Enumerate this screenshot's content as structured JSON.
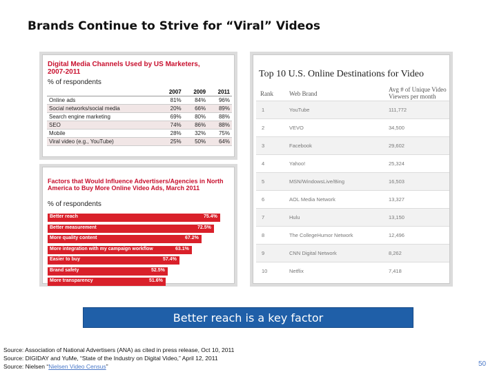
{
  "slide": {
    "title": "Brands Continue to Strive for “Viral” Videos",
    "banner": "Better reach is a key factor",
    "sources": [
      "Source: Association of National Advertisers (ANA) as cited in press release, Oct 10, 2011",
      "Source: DIGIDAY and YuMe, “State of the Industry on Digital Video,” April 12, 2011"
    ],
    "source3_prefix": "Source: Nielsen “",
    "source3_link": "Nielsen Video Census",
    "source3_suffix": "”",
    "page_number": "50"
  },
  "table1": {
    "title": "Digital Media Channels Used by US Marketers, 2007-2011",
    "subtitle": "% of respondents",
    "headers": [
      "",
      "2007",
      "2009",
      "2011"
    ],
    "rows": [
      [
        "Online ads",
        "81%",
        "84%",
        "96%"
      ],
      [
        "Social networks/social media",
        "20%",
        "66%",
        "89%"
      ],
      [
        "Search engine marketing",
        "69%",
        "80%",
        "88%"
      ],
      [
        "SEO",
        "74%",
        "86%",
        "88%"
      ],
      [
        "Mobile",
        "28%",
        "32%",
        "75%"
      ],
      [
        "Viral video (e.g., YouTube)",
        "25%",
        "50%",
        "64%"
      ]
    ]
  },
  "chart_data": {
    "type": "bar",
    "title": "Factors that Would Influence Advertisers/Agencies in North America to Buy More Online Video Ads, March 2011",
    "subtitle": "% of respondents",
    "categories": [
      "Better reach",
      "Better measurement",
      "More quality content",
      "More integration with my campaign workflow",
      "Easier to buy",
      "Brand safety",
      "More transparency"
    ],
    "values": [
      75.4,
      72.5,
      67.2,
      63.1,
      57.4,
      52.5,
      51.6
    ],
    "value_labels": [
      "75.4%",
      "72.5%",
      "67.2%",
      "63.1%",
      "57.4%",
      "52.5%",
      "51.6%"
    ],
    "xlim": [
      0,
      100
    ],
    "color": "#d9202a"
  },
  "table2": {
    "title": "Top 10 U.S. Online Destinations for Video",
    "headers": [
      "Rank",
      "Web Brand",
      "Avg # of Unique Video Viewers per month"
    ],
    "rows": [
      [
        "1",
        "YouTube",
        "111,772"
      ],
      [
        "2",
        "VEVO",
        "34,500"
      ],
      [
        "3",
        "Facebook",
        "29,602"
      ],
      [
        "4",
        "Yahoo!",
        "25,324"
      ],
      [
        "5",
        "MSN/WindowsLive/Bing",
        "16,503"
      ],
      [
        "6",
        "AOL Media Network",
        "13,327"
      ],
      [
        "7",
        "Hulu",
        "13,150"
      ],
      [
        "8",
        "The CollegeHumor Network",
        "12,496"
      ],
      [
        "9",
        "CNN Digital Network",
        "8,262"
      ],
      [
        "10",
        "Netflix",
        "7,418"
      ]
    ]
  }
}
